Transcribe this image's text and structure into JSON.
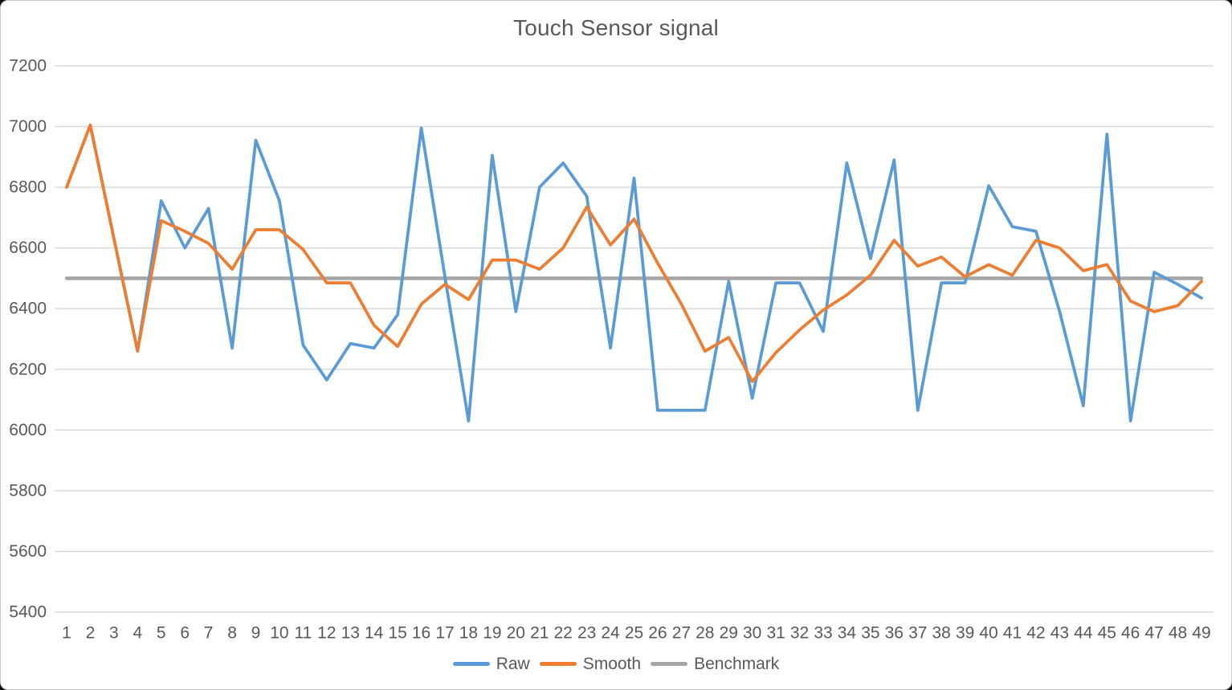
{
  "window": {
    "title_bar": ""
  },
  "chart_data": {
    "type": "line",
    "title": "Touch Sensor signal",
    "xlabel": "",
    "ylabel": "",
    "ylim": [
      5400,
      7200
    ],
    "ytick_step": 200,
    "grid": "horizontal",
    "legend_position": "bottom",
    "x": [
      1,
      2,
      3,
      4,
      5,
      6,
      7,
      8,
      9,
      10,
      11,
      12,
      13,
      14,
      15,
      16,
      17,
      18,
      19,
      20,
      21,
      22,
      23,
      24,
      25,
      26,
      27,
      28,
      29,
      30,
      31,
      32,
      33,
      34,
      35,
      36,
      37,
      38,
      39,
      40,
      41,
      42,
      43,
      44,
      45,
      46,
      47,
      48,
      49
    ],
    "series": [
      {
        "name": "Raw",
        "color": "#5B9BD5",
        "values": [
          6800,
          7005,
          6630,
          6260,
          6755,
          6600,
          6730,
          6270,
          6955,
          6755,
          6280,
          6165,
          6285,
          6270,
          6380,
          6995,
          6505,
          6030,
          6905,
          6390,
          6800,
          6880,
          6770,
          6270,
          6830,
          6065,
          6065,
          6065,
          6490,
          6105,
          6485,
          6485,
          6325,
          6880,
          6565,
          6890,
          6065,
          6485,
          6485,
          6805,
          6670,
          6655,
          6390,
          6080,
          6975,
          6030,
          6520,
          6480,
          6435
        ]
      },
      {
        "name": "Smooth",
        "color": "#ED7D31",
        "values": [
          6800,
          7005,
          6630,
          6260,
          6690,
          6655,
          6615,
          6530,
          6660,
          6660,
          6595,
          6485,
          6485,
          6345,
          6275,
          6415,
          6480,
          6430,
          6560,
          6560,
          6530,
          6600,
          6735,
          6610,
          6695,
          6550,
          6415,
          6260,
          6305,
          6160,
          6255,
          6330,
          6395,
          6445,
          6510,
          6625,
          6540,
          6570,
          6505,
          6545,
          6510,
          6625,
          6600,
          6525,
          6545,
          6425,
          6390,
          6410,
          6490
        ]
      },
      {
        "name": "Benchmark",
        "color": "#A5A5A5",
        "constant": 6500
      }
    ]
  },
  "axes": {
    "y_ticks": [
      7200,
      7000,
      6800,
      6600,
      6400,
      6200,
      6000,
      5800,
      5600,
      5400
    ],
    "x_ticks": [
      "1",
      "2",
      "3",
      "4",
      "5",
      "6",
      "7",
      "8",
      "9",
      "10",
      "11",
      "12",
      "13",
      "14",
      "15",
      "16",
      "17",
      "18",
      "19",
      "20",
      "21",
      "22",
      "23",
      "24",
      "25",
      "26",
      "27",
      "28",
      "29",
      "30",
      "31",
      "32",
      "33",
      "34",
      "35",
      "36",
      "37",
      "38",
      "39",
      "40",
      "41",
      "42",
      "43",
      "44",
      "45",
      "46",
      "47",
      "48",
      "49"
    ]
  },
  "style": {
    "gridline_color": "#D9D9D9",
    "text_color": "#595959",
    "background": "#FFFFFF"
  }
}
